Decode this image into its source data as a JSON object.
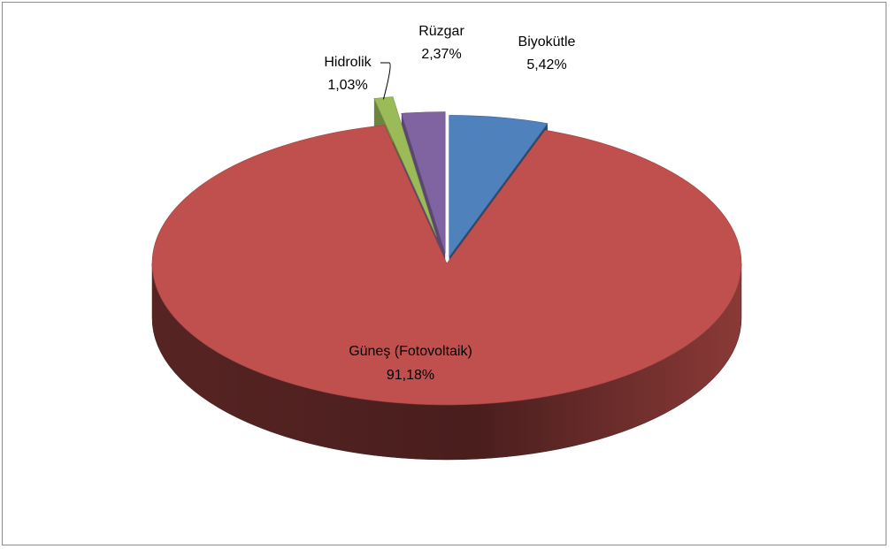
{
  "chart_data": {
    "type": "pie",
    "style": "3d-exploded",
    "categories": [
      "Biyokütle",
      "Güneş (Fotovoltaik)",
      "Hidrolik",
      "Rüzgar"
    ],
    "values": [
      5.42,
      91.18,
      1.03,
      2.37
    ],
    "value_labels": [
      "5,42%",
      "91,18%",
      "1,03%",
      "2,37%"
    ],
    "colors": [
      "#4f81bd",
      "#c0504d",
      "#9bbb59",
      "#8064a2"
    ],
    "title": "",
    "legend": "none",
    "data_labels": "category-and-percent"
  }
}
